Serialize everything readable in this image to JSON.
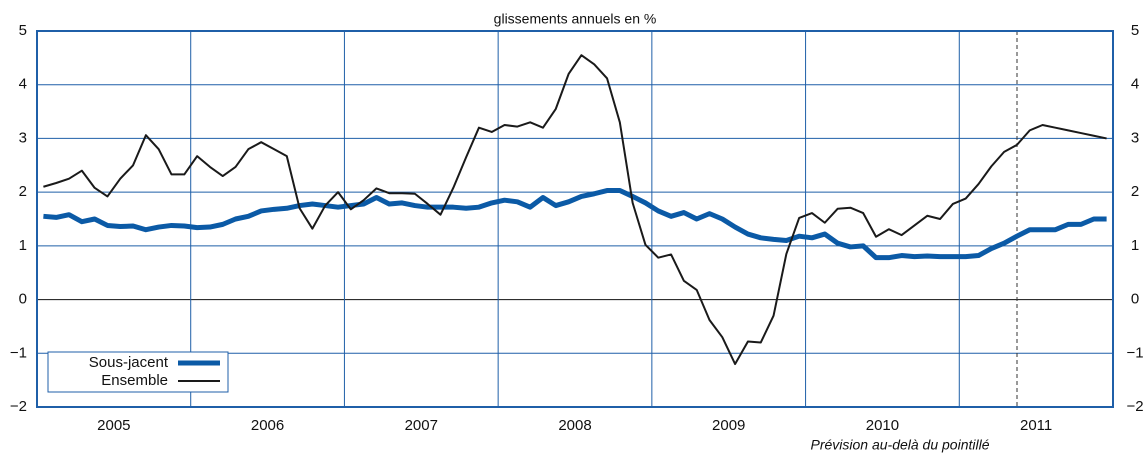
{
  "chart_data": {
    "type": "line",
    "title": "glissements annuels en %",
    "annotation": "Prévision au-delà du pointillé",
    "categories": [
      null,
      null,
      null,
      null,
      null,
      null,
      "2005",
      null,
      null,
      null,
      null,
      null,
      null,
      null,
      null,
      null,
      null,
      null,
      "2006",
      null,
      null,
      null,
      null,
      null,
      null,
      null,
      null,
      null,
      null,
      null,
      "2007",
      null,
      null,
      null,
      null,
      null,
      null,
      null,
      null,
      null,
      null,
      null,
      "2008",
      null,
      null,
      null,
      null,
      null,
      null,
      null,
      null,
      null,
      null,
      null,
      "2009",
      null,
      null,
      null,
      null,
      null,
      null,
      null,
      null,
      null,
      null,
      null,
      "2010",
      null,
      null,
      null,
      null,
      null,
      null,
      null,
      null,
      null,
      null,
      null,
      "2011",
      null,
      null,
      null,
      null,
      null
    ],
    "series": [
      {
        "name": "Sous-jacent",
        "color": "#0b5aa6",
        "values": [
          1.55,
          1.53,
          1.58,
          1.45,
          1.5,
          1.38,
          1.36,
          1.37,
          1.3,
          1.35,
          1.38,
          1.37,
          1.34,
          1.35,
          1.4,
          1.5,
          1.55,
          1.65,
          1.68,
          1.7,
          1.75,
          1.78,
          1.75,
          1.72,
          1.75,
          1.78,
          1.9,
          1.78,
          1.8,
          1.75,
          1.72,
          1.72,
          1.72,
          1.7,
          1.72,
          1.8,
          1.85,
          1.82,
          1.72,
          1.9,
          1.75,
          1.82,
          1.92,
          1.97,
          2.03,
          2.03,
          1.92,
          1.8,
          1.65,
          1.55,
          1.62,
          1.5,
          1.6,
          1.5,
          1.35,
          1.22,
          1.15,
          1.12,
          1.1,
          1.18,
          1.15,
          1.22,
          1.05,
          0.98,
          1.0,
          0.78,
          0.78,
          0.82,
          0.8,
          0.81,
          0.8,
          0.8,
          0.8,
          0.82,
          0.95,
          1.05,
          1.18,
          1.3,
          1.3,
          1.3,
          1.4,
          1.4,
          1.5,
          1.5
        ]
      },
      {
        "name": "Ensemble",
        "color": "#1a1a1a",
        "values": [
          2.1,
          2.17,
          2.25,
          2.4,
          2.08,
          1.92,
          2.25,
          2.5,
          3.06,
          2.8,
          2.33,
          2.33,
          2.67,
          2.47,
          2.3,
          2.47,
          2.8,
          2.93,
          2.8,
          2.67,
          1.7,
          1.32,
          1.75,
          2.0,
          1.68,
          1.85,
          2.07,
          1.98,
          1.98,
          1.97,
          1.78,
          1.58,
          2.08,
          2.65,
          3.2,
          3.12,
          3.25,
          3.22,
          3.3,
          3.2,
          3.55,
          4.2,
          4.55,
          4.38,
          4.12,
          3.3,
          1.8,
          1.02,
          0.78,
          0.84,
          0.35,
          0.18,
          -0.38,
          -0.7,
          -1.2,
          -0.78,
          -0.8,
          -0.3,
          0.85,
          1.52,
          1.61,
          1.43,
          1.69,
          1.71,
          1.61,
          1.17,
          1.31,
          1.2,
          1.38,
          1.56,
          1.5,
          1.78,
          1.88,
          2.15,
          2.48,
          2.75,
          2.88,
          3.15,
          3.25,
          3.2,
          3.15,
          3.1,
          3.05,
          3.0
        ]
      }
    ],
    "ylim": [
      -2,
      5
    ],
    "yticks": [
      {
        "value": -2,
        "label": "−2"
      },
      {
        "value": -1,
        "label": "−1"
      },
      0,
      1,
      2,
      3,
      4,
      5
    ],
    "grid": true,
    "legend": "lower left"
  }
}
